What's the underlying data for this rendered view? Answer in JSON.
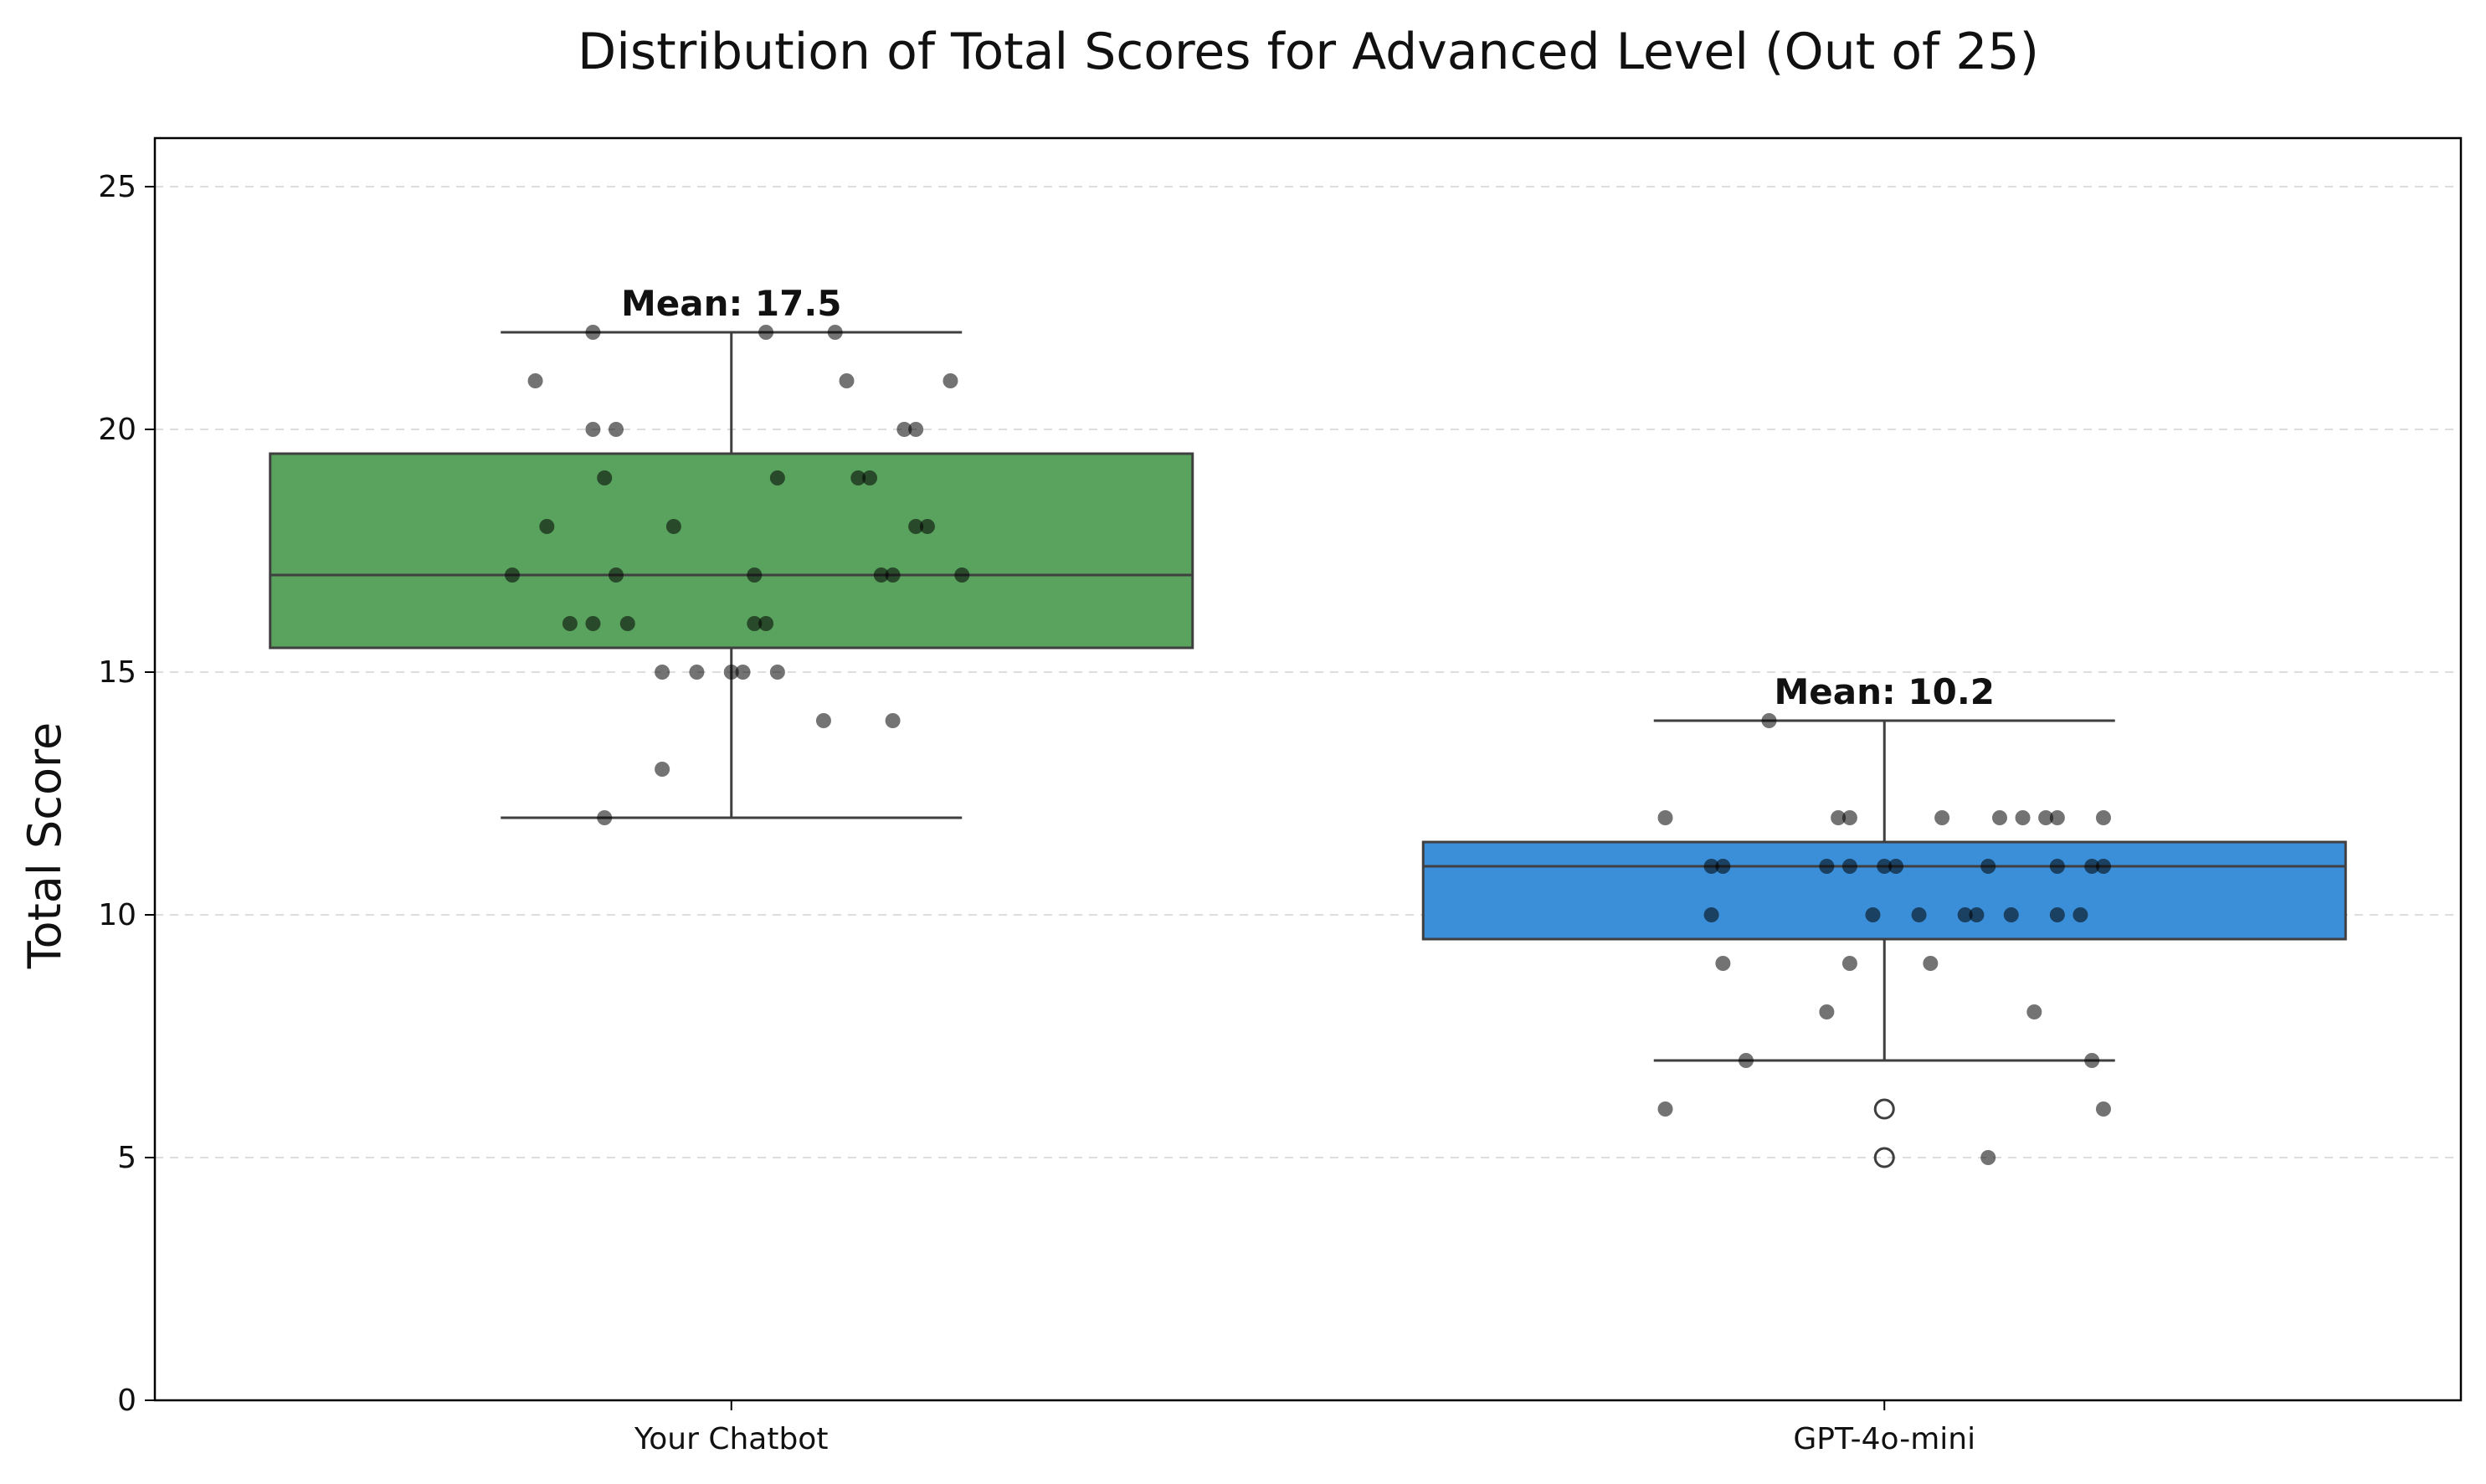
{
  "chart_data": {
    "type": "box",
    "title": "Distribution of Total Scores for Advanced Level (Out of 25)",
    "xlabel": "",
    "ylabel": "Total Score",
    "ylim": [
      0,
      26
    ],
    "yticks": [
      0,
      5,
      10,
      15,
      20,
      25
    ],
    "grid": "y-dashed",
    "categories": [
      "Your Chatbot",
      "GPT-4o-mini"
    ],
    "series": [
      {
        "category": "Your Chatbot",
        "color": "#59a35e",
        "whisker_low": 12,
        "q1": 15.5,
        "median": 17,
        "q3": 19.5,
        "whisker_high": 22,
        "mean": 17.5,
        "mean_label": "Mean: 17.5",
        "outliers": [],
        "points": [
          [
            -0.12,
            22
          ],
          [
            0.03,
            22
          ],
          [
            0.09,
            22
          ],
          [
            -0.17,
            21
          ],
          [
            0.1,
            21
          ],
          [
            0.19,
            21
          ],
          [
            -0.12,
            20
          ],
          [
            -0.1,
            20
          ],
          [
            0.15,
            20
          ],
          [
            0.16,
            20
          ],
          [
            -0.11,
            19
          ],
          [
            0.04,
            19
          ],
          [
            0.11,
            19
          ],
          [
            0.12,
            19
          ],
          [
            -0.16,
            18
          ],
          [
            -0.05,
            18
          ],
          [
            0.16,
            18
          ],
          [
            0.17,
            18
          ],
          [
            -0.19,
            17
          ],
          [
            -0.1,
            17
          ],
          [
            0.02,
            17
          ],
          [
            0.13,
            17
          ],
          [
            0.14,
            17
          ],
          [
            0.2,
            17
          ],
          [
            -0.14,
            16
          ],
          [
            -0.12,
            16
          ],
          [
            -0.09,
            16
          ],
          [
            0.02,
            16
          ],
          [
            0.03,
            16
          ],
          [
            -0.06,
            15
          ],
          [
            -0.03,
            15
          ],
          [
            0.0,
            15
          ],
          [
            0.01,
            15
          ],
          [
            0.04,
            15
          ],
          [
            0.08,
            14
          ],
          [
            0.14,
            14
          ],
          [
            -0.06,
            13
          ],
          [
            -0.11,
            12
          ]
        ]
      },
      {
        "category": "GPT-4o-mini",
        "color": "#3b8fd9",
        "whisker_low": 7,
        "q1": 9.5,
        "median": 11,
        "q3": 11.5,
        "whisker_high": 14,
        "mean": 10.2,
        "mean_label": "Mean: 10.2",
        "outliers": [
          6,
          5
        ],
        "points": [
          [
            -0.1,
            14
          ],
          [
            -0.19,
            12
          ],
          [
            -0.04,
            12
          ],
          [
            -0.03,
            12
          ],
          [
            0.05,
            12
          ],
          [
            0.1,
            12
          ],
          [
            0.12,
            12
          ],
          [
            0.14,
            12
          ],
          [
            0.15,
            12
          ],
          [
            0.19,
            12
          ],
          [
            -0.15,
            11
          ],
          [
            -0.14,
            11
          ],
          [
            -0.05,
            11
          ],
          [
            -0.03,
            11
          ],
          [
            0.0,
            11
          ],
          [
            0.01,
            11
          ],
          [
            0.09,
            11
          ],
          [
            0.15,
            11
          ],
          [
            0.18,
            11
          ],
          [
            0.19,
            11
          ],
          [
            -0.15,
            10
          ],
          [
            -0.01,
            10
          ],
          [
            0.03,
            10
          ],
          [
            0.07,
            10
          ],
          [
            0.08,
            10
          ],
          [
            0.11,
            10
          ],
          [
            0.15,
            10
          ],
          [
            0.17,
            10
          ],
          [
            -0.14,
            9
          ],
          [
            -0.03,
            9
          ],
          [
            0.04,
            9
          ],
          [
            -0.05,
            8
          ],
          [
            0.13,
            8
          ],
          [
            -0.12,
            7
          ],
          [
            0.18,
            7
          ],
          [
            -0.19,
            6
          ],
          [
            0.19,
            6
          ],
          [
            0.09,
            5
          ]
        ]
      }
    ]
  }
}
